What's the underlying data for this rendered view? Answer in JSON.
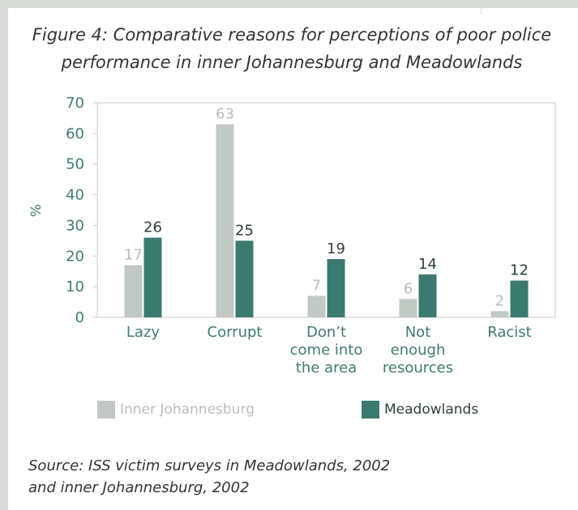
{
  "figure": {
    "title_line1": "Figure 4: Comparative reasons for perceptions of poor police",
    "title_line2": "performance in inner Johannesburg and Meadowlands",
    "source_line1": "Source: ISS victim surveys in Meadowlands, 2002",
    "source_line2": "and inner Johannesburg, 2002"
  },
  "colors": {
    "inner_johannesburg": "#c2c8c4",
    "meadowlands": "#3b7a6e",
    "axis_text": "#3f7b70",
    "inner_label_text": "#b8bfbb",
    "meadowlands_label_text": "#2f3f3c",
    "axis_line": "#c8cdca"
  },
  "chart_data": {
    "type": "bar",
    "categories": [
      [
        "Lazy"
      ],
      [
        "Corrupt"
      ],
      [
        "Don’t",
        "come into",
        "the area"
      ],
      [
        "Not",
        "enough",
        "resources"
      ],
      [
        "Racist"
      ]
    ],
    "series": [
      {
        "name": "Inner Johannesburg",
        "values": [
          17,
          63,
          7,
          6,
          2
        ]
      },
      {
        "name": "Meadowlands",
        "values": [
          26,
          25,
          19,
          14,
          12
        ]
      }
    ],
    "value_labels": [
      [
        "17",
        "63",
        "7",
        "6",
        "2"
      ],
      [
        "26",
        "25",
        "19",
        "14",
        "12"
      ]
    ],
    "ylabel": "%",
    "ylim": [
      0,
      70
    ],
    "yticks": [
      "0",
      "10",
      "20",
      "30",
      "40",
      "50",
      "60",
      "70"
    ],
    "grid": false,
    "legend_position": "bottom"
  }
}
